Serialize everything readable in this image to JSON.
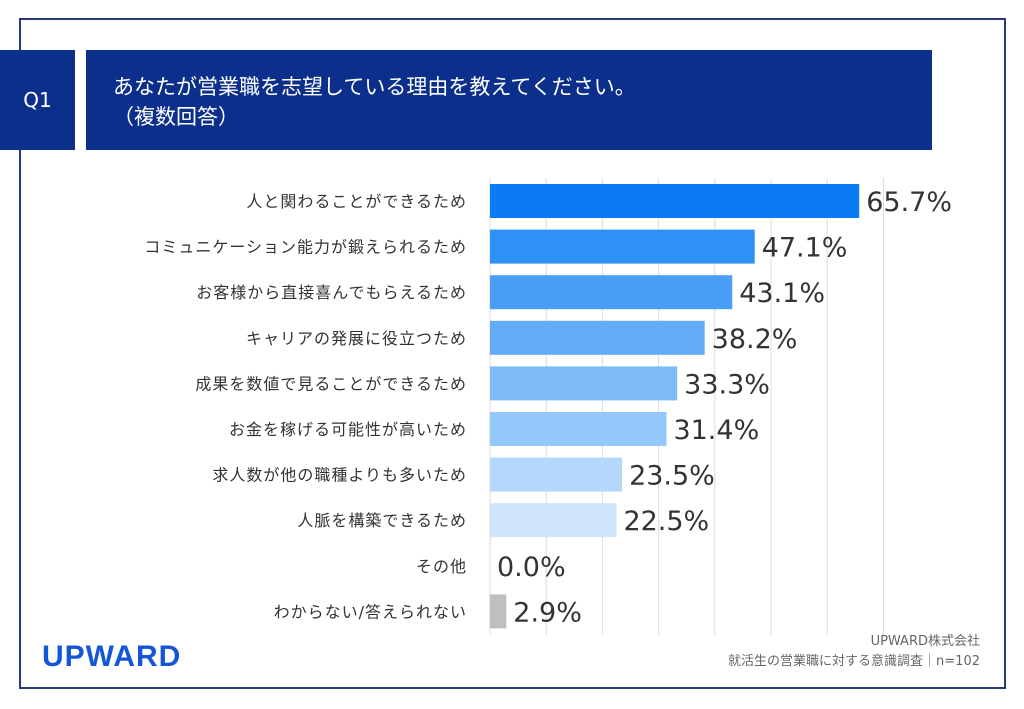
{
  "header": {
    "question_no": "Q1",
    "title_line1": "あなたが営業職を志望している理由を教えてください。",
    "title_line2": "（複数回答）"
  },
  "chart_data": {
    "type": "bar",
    "orientation": "horizontal",
    "categories": [
      "人と関わることができるため",
      "コミュニケーション能力が鍛えられるため",
      "お客様から直接喜んでもらえるため",
      "キャリアの発展に役立つため",
      "成果を数値で見ることができるため",
      "お金を稼げる可能性が高いため",
      "求人数が他の職種よりも多いため",
      "人脈を構築できるため",
      "その他",
      "わからない/答えられない"
    ],
    "values": [
      65.7,
      47.1,
      43.1,
      38.2,
      33.3,
      31.4,
      23.5,
      22.5,
      0.0,
      2.9
    ],
    "labels": [
      "65.7%",
      "47.1%",
      "43.1%",
      "38.2%",
      "33.3%",
      "31.4%",
      "23.5%",
      "22.5%",
      "0.0%",
      "2.9%"
    ],
    "colors": [
      "#0a7bf2",
      "#2f90f5",
      "#4a9ef6",
      "#63acf7",
      "#7ebbf9",
      "#94c7fa",
      "#b4d8fc",
      "#cfe5fd",
      "#cfe5fd",
      "#bfbfbf"
    ],
    "xlim": [
      0,
      70
    ],
    "grid": true,
    "unit": "%"
  },
  "footer": {
    "logo": "UPWARD",
    "source_line1": "UPWARD株式会社",
    "source_line2": "就活生の営業職に対する意識調査｜n=102"
  }
}
